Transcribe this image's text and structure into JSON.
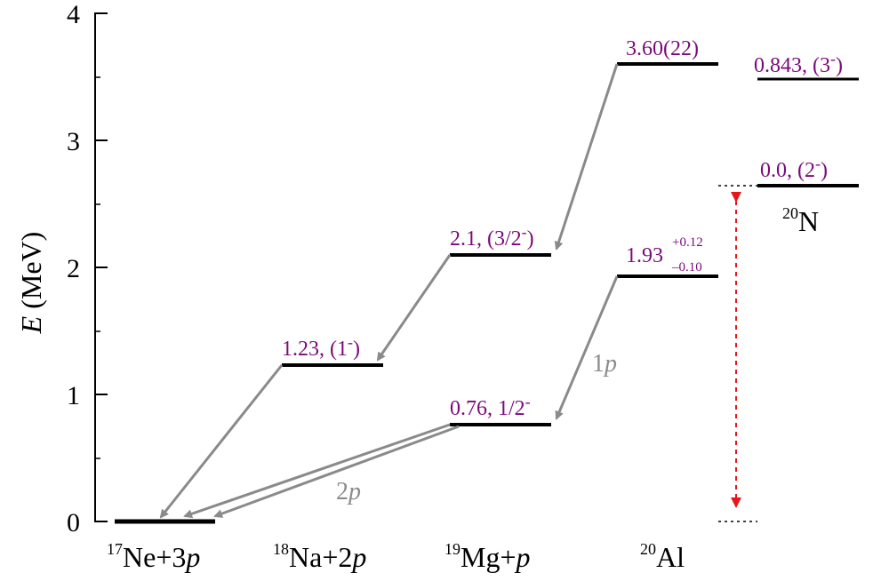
{
  "axis": {
    "y_title_symbol": "E",
    "y_title_unit": "(MeV)",
    "y_ticks": [
      "0",
      "1",
      "2",
      "3",
      "4"
    ]
  },
  "categories": [
    {
      "mass": "17",
      "element": "Ne",
      "suffix": "+3",
      "particle": "p"
    },
    {
      "mass": "18",
      "element": "Na",
      "suffix": "+2",
      "particle": "p"
    },
    {
      "mass": "19",
      "element": "Mg",
      "suffix": "+",
      "particle": "p"
    },
    {
      "mass": "20",
      "element": "Al",
      "suffix": "",
      "particle": ""
    }
  ],
  "mirror": {
    "mass": "20",
    "element": "N"
  },
  "levels": {
    "ne17": {
      "energy": 0
    },
    "na18": {
      "energy": 1.23,
      "label": "1.23, (1",
      "sup": "-",
      "close": ")"
    },
    "mg19_gs": {
      "energy": 0.76,
      "label": "0.76, 1/2",
      "sup": "-",
      "close": ""
    },
    "mg19_exc": {
      "energy": 2.1,
      "label": "2.1, (3/2",
      "sup": "-",
      "close": ")"
    },
    "al20_low": {
      "energy": 1.93,
      "label": "1.93",
      "sup_plus": "+0.12",
      "sub_minus": "–0.10"
    },
    "al20_high": {
      "energy": 3.6,
      "label": "3.60(22)"
    },
    "n20_gs": {
      "energy": 2.63,
      "label": "0.0, (2",
      "sup": "-",
      "close": ")"
    },
    "n20_exc": {
      "energy": 3.48,
      "label": "0.843, (3",
      "sup": "-",
      "close": ")"
    }
  },
  "decay_labels": {
    "one_p": {
      "num": "1",
      "particle": "p"
    },
    "two_p": {
      "num": "2",
      "particle": "p"
    }
  },
  "colors": {
    "level": "#000000",
    "arrow": "#8a8a8a",
    "label": "#7a0a7a",
    "shift_arrow": "#e8161b"
  }
}
